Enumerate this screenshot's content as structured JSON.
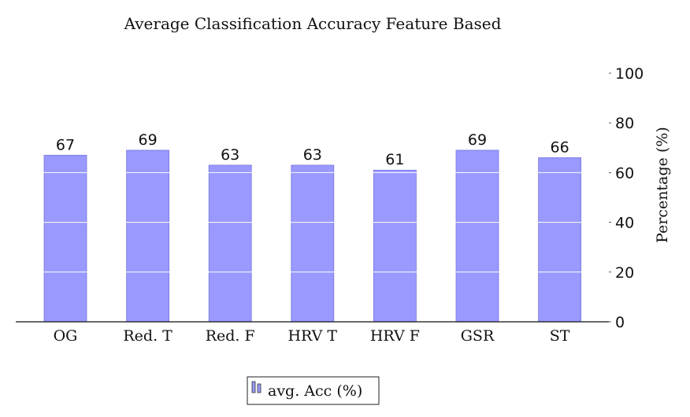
{
  "chart_data": {
    "type": "bar",
    "title": "Average Classification Accuracy Feature Based",
    "categories": [
      "OG",
      "Red. T",
      "Red. F",
      "HRV T",
      "HRV F",
      "GSR",
      "ST"
    ],
    "series": [
      {
        "name": "avg. Acc (%)",
        "values": [
          67,
          69,
          63,
          63,
          61,
          69,
          66
        ],
        "color": "#9999ff"
      }
    ],
    "xlabel": "",
    "ylabel": "Percentage (%)",
    "ylim": [
      0,
      100
    ],
    "yticks": [
      0,
      20,
      40,
      60,
      80,
      100
    ],
    "y_axis_side": "right",
    "grid": "horizontal white lines over bars",
    "legend_position": "bottom-center"
  }
}
